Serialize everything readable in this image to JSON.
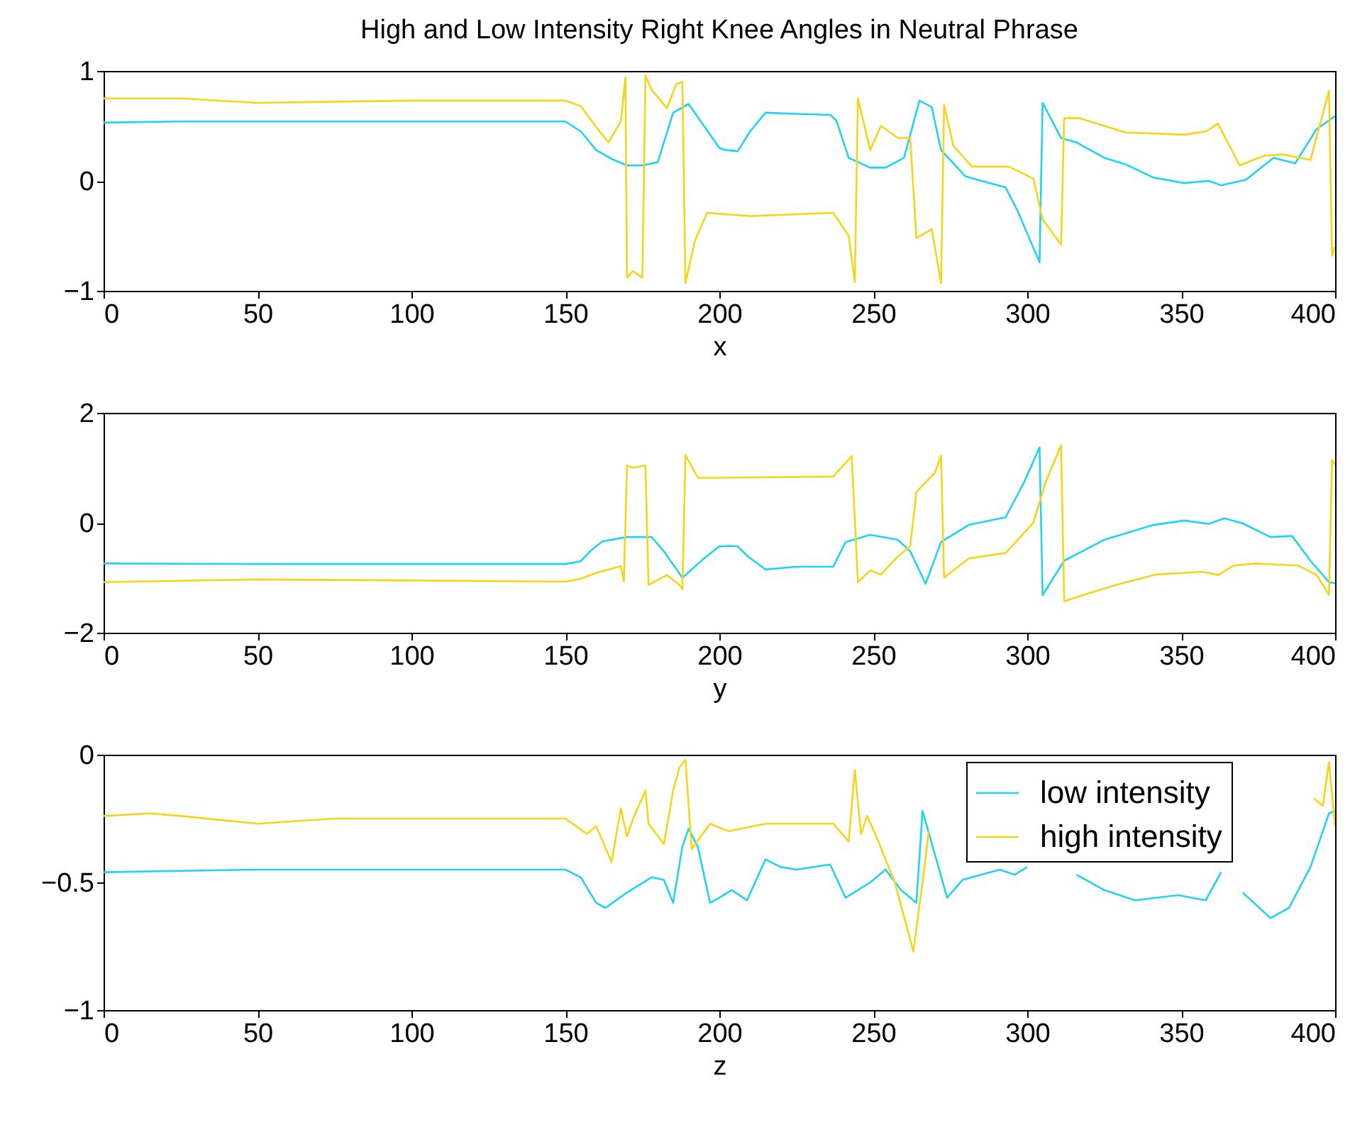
{
  "chart_data": [
    {
      "type": "line",
      "title": "High and Low Intensity Right Knee Angles in Neutral Phrase",
      "xlabel": "x",
      "xlim": [
        0,
        400
      ],
      "xticks": [
        0,
        50,
        100,
        150,
        200,
        250,
        300,
        350,
        400
      ],
      "ylim": [
        -1,
        1
      ],
      "yticks": [
        -1,
        0,
        1
      ],
      "series": [
        {
          "color": "#1fd3f3",
          "x": [
            0,
            25,
            50,
            75,
            100,
            125,
            150,
            155,
            160,
            165,
            170,
            175,
            180,
            185,
            190,
            195,
            200,
            202,
            206,
            210,
            215,
            225,
            236,
            238,
            242,
            249,
            254,
            260,
            265,
            269,
            272,
            280,
            293,
            297,
            304,
            305,
            311,
            316,
            325,
            332,
            341,
            351,
            359,
            363,
            371,
            380,
            387,
            394,
            400
          ],
          "values": [
            0.53,
            0.54,
            0.54,
            0.54,
            0.54,
            0.54,
            0.54,
            0.45,
            0.28,
            0.2,
            0.14,
            0.14,
            0.17,
            0.62,
            0.7,
            0.5,
            0.3,
            0.28,
            0.27,
            0.45,
            0.62,
            0.61,
            0.6,
            0.55,
            0.21,
            0.12,
            0.12,
            0.21,
            0.73,
            0.67,
            0.28,
            0.04,
            -0.06,
            -0.28,
            -0.74,
            0.71,
            0.39,
            0.35,
            0.21,
            0.15,
            0.03,
            -0.02,
            0,
            -0.04,
            0.01,
            0.21,
            0.16,
            0.47,
            0.59
          ]
        },
        {
          "color": "#f7d417",
          "x": [
            0,
            25,
            50,
            75,
            100,
            125,
            150,
            155,
            160,
            164,
            168,
            169.5,
            170,
            172,
            175,
            176,
            178,
            183,
            186,
            188,
            189,
            192,
            196,
            210,
            237,
            242,
            244,
            245,
            249,
            252.5,
            258,
            262,
            264,
            269,
            272,
            273,
            276,
            282,
            294,
            302,
            305,
            311,
            312,
            317,
            332,
            351,
            358,
            362,
            369,
            377,
            383,
            392,
            398,
            399,
            400
          ],
          "values": [
            0.75,
            0.75,
            0.71,
            0.72,
            0.73,
            0.73,
            0.73,
            0.68,
            0.49,
            0.35,
            0.54,
            0.94,
            -0.88,
            -0.82,
            -0.88,
            0.96,
            0.83,
            0.66,
            0.88,
            0.9,
            -0.93,
            -0.55,
            -0.29,
            -0.32,
            -0.29,
            -0.5,
            -0.92,
            0.75,
            0.28,
            0.5,
            0.39,
            0.39,
            -0.52,
            -0.44,
            -0.93,
            0.69,
            0.32,
            0.13,
            0.13,
            0.02,
            -0.35,
            -0.58,
            0.57,
            0.57,
            0.44,
            0.42,
            0.45,
            0.52,
            0.14,
            0.23,
            0.24,
            0.19,
            0.82,
            -0.68,
            -0.6
          ]
        }
      ]
    },
    {
      "type": "line",
      "xlabel": "y",
      "xlim": [
        0,
        400
      ],
      "xticks": [
        0,
        50,
        100,
        150,
        200,
        250,
        300,
        350,
        400
      ],
      "ylim": [
        -2,
        2
      ],
      "yticks": [
        -2,
        0,
        2
      ],
      "series": [
        {
          "color": "#1fd3f3",
          "x": [
            0,
            50,
            100,
            150,
            155,
            158,
            162,
            170,
            178,
            182,
            188,
            195,
            200,
            203,
            206,
            209,
            215,
            225,
            237,
            241,
            249,
            258,
            262,
            267,
            272,
            281,
            293,
            299,
            304,
            305,
            312,
            325,
            341,
            351,
            359,
            364,
            370,
            379,
            386,
            392,
            398,
            400
          ],
          "values": [
            -0.74,
            -0.75,
            -0.75,
            -0.75,
            -0.7,
            -0.52,
            -0.34,
            -0.26,
            -0.26,
            -0.52,
            -1.0,
            -0.65,
            -0.43,
            -0.42,
            -0.43,
            -0.6,
            -0.85,
            -0.8,
            -0.8,
            -0.35,
            -0.22,
            -0.31,
            -0.52,
            -1.11,
            -0.35,
            -0.04,
            0.1,
            0.74,
            1.37,
            -1.32,
            -0.69,
            -0.31,
            -0.04,
            0.04,
            -0.02,
            0.08,
            -0.01,
            -0.26,
            -0.24,
            -0.69,
            -1.08,
            -1.1
          ]
        },
        {
          "color": "#f7d417",
          "x": [
            0,
            50,
            100,
            150,
            155,
            160,
            168,
            169,
            170,
            172,
            176,
            177,
            183,
            187,
            188,
            189,
            193,
            200,
            237,
            243,
            245,
            249,
            252.5,
            258,
            262,
            264,
            270,
            272,
            273,
            281,
            293,
            302,
            306,
            311,
            312,
            319,
            329,
            342,
            357,
            362,
            367,
            374,
            388,
            394,
            398,
            399,
            400
          ],
          "values": [
            -1.08,
            -1.03,
            -1.05,
            -1.07,
            -1.02,
            -0.91,
            -0.79,
            -1.07,
            1.04,
            1.0,
            1.04,
            -1.13,
            -0.95,
            -1.13,
            -1.21,
            1.23,
            0.82,
            0.82,
            0.84,
            1.21,
            -1.08,
            -0.87,
            -0.94,
            -0.61,
            -0.43,
            0.56,
            0.91,
            1.22,
            -1.0,
            -0.65,
            -0.55,
            0,
            0.74,
            1.41,
            -1.43,
            -1.3,
            -1.13,
            -0.94,
            -0.89,
            -0.95,
            -0.78,
            -0.74,
            -0.78,
            -0.95,
            -1.31,
            1.14,
            1.06
          ]
        }
      ]
    },
    {
      "type": "line",
      "xlabel": "z",
      "xlim": [
        0,
        400
      ],
      "xticks": [
        0,
        50,
        100,
        150,
        200,
        250,
        300,
        350,
        400
      ],
      "ylim": [
        -1,
        0
      ],
      "yticks": [
        -1,
        -0.5,
        0
      ],
      "legend": "top right",
      "series": [
        {
          "name": "low intensity",
          "color": "#1fd3f3",
          "x": [
            0,
            50,
            100,
            150,
            155,
            160,
            163,
            170,
            178,
            182,
            185,
            188,
            190,
            193,
            197,
            200,
            204,
            209,
            215,
            220,
            225,
            236,
            241,
            249,
            254,
            259,
            264,
            266,
            274,
            279,
            291,
            296,
            300,
            302,
            316,
            325,
            335,
            349,
            358,
            363,
            368,
            370,
            379,
            385,
            392,
            398,
            400
          ],
          "values": [
            -0.46,
            -0.45,
            -0.45,
            -0.45,
            -0.48,
            -0.58,
            -0.6,
            -0.54,
            -0.48,
            -0.49,
            -0.58,
            -0.36,
            -0.29,
            -0.36,
            -0.58,
            -0.56,
            -0.53,
            -0.57,
            -0.41,
            -0.44,
            -0.45,
            -0.43,
            -0.56,
            -0.5,
            -0.45,
            -0.53,
            -0.58,
            -0.22,
            -0.56,
            -0.49,
            -0.45,
            -0.47,
            -0.44,
            null,
            -0.47,
            -0.53,
            -0.57,
            -0.55,
            -0.57,
            -0.46,
            null,
            -0.54,
            -0.64,
            -0.6,
            -0.44,
            -0.23,
            -0.22
          ]
        },
        {
          "name": "high intensity",
          "color": "#f7d417",
          "x": [
            0,
            15,
            25,
            50,
            75,
            100,
            150,
            157,
            160,
            165,
            168,
            170,
            172,
            176,
            177,
            182,
            185,
            187,
            189,
            191,
            197,
            203,
            215,
            237,
            242,
            244,
            246,
            248,
            251,
            257,
            263,
            266,
            268,
            270,
            393,
            396,
            398,
            400
          ],
          "values": [
            -0.24,
            -0.23,
            -0.24,
            -0.27,
            -0.25,
            -0.25,
            -0.25,
            -0.31,
            -0.28,
            -0.42,
            -0.21,
            -0.32,
            -0.25,
            -0.14,
            -0.27,
            -0.35,
            -0.14,
            -0.05,
            -0.02,
            -0.37,
            -0.27,
            -0.3,
            -0.27,
            -0.27,
            -0.34,
            -0.06,
            -0.31,
            -0.24,
            -0.32,
            -0.5,
            -0.77,
            -0.5,
            -0.3,
            null,
            -0.17,
            -0.2,
            -0.03,
            -0.28
          ]
        }
      ]
    }
  ]
}
